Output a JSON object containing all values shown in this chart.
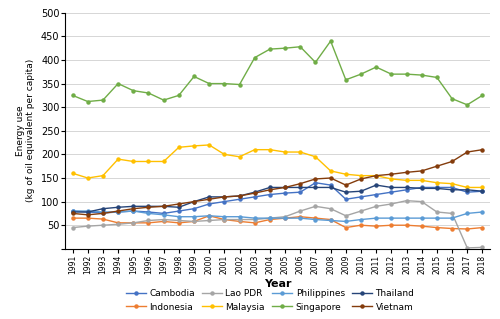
{
  "years": [
    1991,
    1992,
    1993,
    1994,
    1995,
    1996,
    1997,
    1998,
    1999,
    2000,
    2001,
    2002,
    2003,
    2004,
    2005,
    2006,
    2007,
    2008,
    2009,
    2010,
    2011,
    2012,
    2013,
    2014,
    2015,
    2016,
    2017,
    2018
  ],
  "Cambodia": [
    80,
    78,
    76,
    78,
    80,
    78,
    75,
    80,
    85,
    95,
    100,
    105,
    110,
    115,
    118,
    120,
    140,
    135,
    105,
    110,
    115,
    120,
    125,
    130,
    130,
    130,
    120,
    122
  ],
  "Indonesia": [
    65,
    65,
    63,
    55,
    55,
    55,
    58,
    55,
    58,
    70,
    62,
    58,
    55,
    62,
    65,
    68,
    65,
    62,
    45,
    50,
    48,
    50,
    50,
    48,
    45,
    43,
    42,
    45
  ],
  "Lao PDR": [
    45,
    48,
    50,
    52,
    55,
    60,
    62,
    60,
    58,
    60,
    62,
    62,
    62,
    65,
    68,
    80,
    90,
    85,
    70,
    80,
    90,
    95,
    102,
    100,
    78,
    75,
    2,
    3
  ],
  "Malaysia": [
    160,
    150,
    155,
    190,
    185,
    185,
    185,
    215,
    218,
    220,
    200,
    195,
    210,
    210,
    205,
    205,
    195,
    165,
    158,
    155,
    155,
    148,
    145,
    145,
    140,
    138,
    130,
    130
  ],
  "Philippines": [
    80,
    80,
    78,
    78,
    80,
    75,
    72,
    68,
    68,
    70,
    68,
    68,
    65,
    65,
    65,
    65,
    62,
    60,
    58,
    62,
    65,
    65,
    65,
    65,
    65,
    65,
    75,
    78
  ],
  "Singapore": [
    325,
    312,
    315,
    350,
    335,
    330,
    315,
    325,
    365,
    350,
    350,
    348,
    405,
    423,
    425,
    428,
    395,
    440,
    358,
    370,
    385,
    370,
    370,
    368,
    363,
    318,
    305,
    325
  ],
  "Thailand": [
    78,
    78,
    85,
    88,
    90,
    90,
    90,
    88,
    100,
    110,
    110,
    112,
    120,
    130,
    130,
    130,
    130,
    130,
    120,
    122,
    135,
    130,
    130,
    128,
    128,
    125,
    125,
    122
  ],
  "Vietnam": [
    75,
    72,
    75,
    80,
    85,
    88,
    90,
    95,
    100,
    105,
    110,
    112,
    118,
    125,
    130,
    138,
    148,
    150,
    135,
    148,
    155,
    158,
    162,
    165,
    175,
    185,
    205,
    210
  ],
  "colors": {
    "Cambodia": "#4472C4",
    "Indonesia": "#ED7D31",
    "Lao PDR": "#A5A5A5",
    "Malaysia": "#FFC000",
    "Philippines": "#5B9BD5",
    "Singapore": "#70AD47",
    "Thailand": "#264478",
    "Vietnam": "#843C0C"
  },
  "ylabel_top": "Energy use",
  "ylabel_bottom": "(kg of oil equivalent per capita)",
  "xlabel": "Year",
  "ylim": [
    0,
    500
  ],
  "yticks": [
    0,
    50,
    100,
    150,
    200,
    250,
    300,
    350,
    400,
    450,
    500
  ],
  "legend_order": [
    "Cambodia",
    "Indonesia",
    "Lao PDR",
    "Malaysia",
    "Philippines",
    "Singapore",
    "Thailand",
    "Vietnam"
  ]
}
